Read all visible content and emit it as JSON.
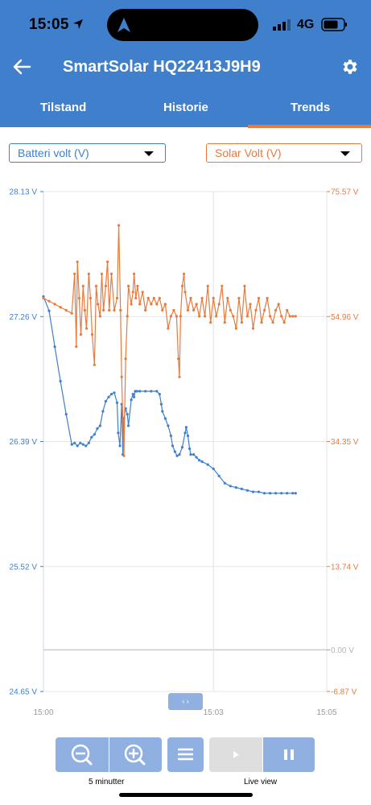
{
  "status": {
    "time": "15:05",
    "network": "4G"
  },
  "header": {
    "title": "SmartSolar HQ22413J9H9",
    "tabs": [
      {
        "label": "Tilstand"
      },
      {
        "label": "Historie"
      },
      {
        "label": "Trends",
        "active": true
      }
    ]
  },
  "selectors": {
    "left": {
      "value": "Batteri volt (V)",
      "color": "#3f7fcc"
    },
    "right": {
      "value": "Solar Volt (V)",
      "color": "#ea7a3c"
    }
  },
  "chart_data": {
    "type": "line",
    "x_ticks": [
      "15:00",
      "15:03",
      "15:05"
    ],
    "y_left": {
      "ticks": [
        "28.13 V",
        "27.26 V",
        "26.39 V",
        "25.52 V",
        "24.65 V"
      ],
      "range": [
        24.65,
        28.13
      ],
      "unit": "V"
    },
    "y_right": {
      "ticks": [
        "75.57 V",
        "54.96 V",
        "34.35 V",
        "13.74 V",
        "0.00 V",
        "-6.87 V"
      ],
      "range": [
        -6.87,
        75.57
      ],
      "unit": "V"
    },
    "grid": true,
    "series": [
      {
        "name": "Batteri volt (V)",
        "color": "#3f7fcc",
        "axis": "left",
        "points": [
          [
            0.0,
            27.4
          ],
          [
            0.1,
            27.3
          ],
          [
            0.2,
            27.05
          ],
          [
            0.3,
            26.81
          ],
          [
            0.4,
            26.58
          ],
          [
            0.5,
            26.37
          ],
          [
            0.55,
            26.38
          ],
          [
            0.6,
            26.36
          ],
          [
            0.65,
            26.38
          ],
          [
            0.7,
            26.37
          ],
          [
            0.75,
            26.36
          ],
          [
            0.8,
            26.38
          ],
          [
            0.85,
            26.42
          ],
          [
            0.9,
            26.44
          ],
          [
            0.95,
            26.48
          ],
          [
            1.0,
            26.5
          ],
          [
            1.05,
            26.6
          ],
          [
            1.1,
            26.67
          ],
          [
            1.15,
            26.7
          ],
          [
            1.2,
            26.72
          ],
          [
            1.25,
            26.73
          ],
          [
            1.3,
            26.66
          ],
          [
            1.32,
            26.45
          ],
          [
            1.35,
            26.36
          ],
          [
            1.38,
            26.65
          ],
          [
            1.4,
            26.3
          ],
          [
            1.42,
            26.55
          ],
          [
            1.45,
            26.62
          ],
          [
            1.48,
            26.58
          ],
          [
            1.5,
            26.5
          ],
          [
            1.55,
            26.68
          ],
          [
            1.58,
            26.72
          ],
          [
            1.6,
            26.7
          ],
          [
            1.62,
            26.74
          ],
          [
            1.65,
            26.74
          ],
          [
            1.7,
            26.74
          ],
          [
            1.8,
            26.74
          ],
          [
            1.9,
            26.74
          ],
          [
            2.0,
            26.74
          ],
          [
            2.05,
            26.72
          ],
          [
            2.08,
            26.65
          ],
          [
            2.1,
            26.6
          ],
          [
            2.15,
            26.55
          ],
          [
            2.2,
            26.5
          ],
          [
            2.25,
            26.43
          ],
          [
            2.28,
            26.36
          ],
          [
            2.32,
            26.32
          ],
          [
            2.36,
            26.29
          ],
          [
            2.4,
            26.3
          ],
          [
            2.45,
            26.35
          ],
          [
            2.5,
            26.45
          ],
          [
            2.52,
            26.49
          ],
          [
            2.55,
            26.43
          ],
          [
            2.58,
            26.34
          ],
          [
            2.6,
            26.3
          ],
          [
            2.65,
            26.3
          ],
          [
            2.7,
            26.28
          ],
          [
            2.75,
            26.26
          ],
          [
            2.8,
            26.25
          ],
          [
            2.9,
            26.23
          ],
          [
            3.0,
            26.2
          ],
          [
            3.1,
            26.15
          ],
          [
            3.2,
            26.1
          ],
          [
            3.3,
            26.08
          ],
          [
            3.4,
            26.07
          ],
          [
            3.5,
            26.06
          ],
          [
            3.6,
            26.05
          ],
          [
            3.7,
            26.04
          ],
          [
            3.8,
            26.04
          ],
          [
            3.9,
            26.03
          ],
          [
            4.0,
            26.03
          ],
          [
            4.1,
            26.03
          ],
          [
            4.2,
            26.03
          ],
          [
            4.3,
            26.03
          ],
          [
            4.4,
            26.03
          ],
          [
            4.45,
            26.03
          ]
        ]
      },
      {
        "name": "Solar Volt (V)",
        "color": "#ea7a3c",
        "axis": "right",
        "points": [
          [
            0.0,
            58.0
          ],
          [
            0.1,
            57.5
          ],
          [
            0.2,
            57.0
          ],
          [
            0.3,
            56.5
          ],
          [
            0.4,
            56.0
          ],
          [
            0.5,
            55.5
          ],
          [
            0.55,
            62.0
          ],
          [
            0.58,
            50.0
          ],
          [
            0.6,
            64.0
          ],
          [
            0.63,
            58.0
          ],
          [
            0.66,
            52.0
          ],
          [
            0.7,
            60.0
          ],
          [
            0.73,
            56.0
          ],
          [
            0.76,
            53.0
          ],
          [
            0.8,
            62.0
          ],
          [
            0.83,
            58.0
          ],
          [
            0.86,
            52.0
          ],
          [
            0.9,
            47.0
          ],
          [
            0.93,
            60.0
          ],
          [
            0.96,
            57.0
          ],
          [
            1.0,
            55.0
          ],
          [
            1.03,
            62.0
          ],
          [
            1.06,
            56.0
          ],
          [
            1.1,
            60.0
          ],
          [
            1.13,
            64.0
          ],
          [
            1.16,
            56.0
          ],
          [
            1.2,
            62.0
          ],
          [
            1.25,
            56.0
          ],
          [
            1.3,
            58.0
          ],
          [
            1.33,
            70.0
          ],
          [
            1.36,
            56.0
          ],
          [
            1.38,
            45.0
          ],
          [
            1.4,
            38.0
          ],
          [
            1.42,
            32.0
          ],
          [
            1.45,
            48.0
          ],
          [
            1.48,
            55.0
          ],
          [
            1.5,
            60.0
          ],
          [
            1.55,
            57.0
          ],
          [
            1.58,
            59.0
          ],
          [
            1.6,
            62.0
          ],
          [
            1.63,
            58.0
          ],
          [
            1.66,
            60.0
          ],
          [
            1.7,
            57.0
          ],
          [
            1.75,
            59.0
          ],
          [
            1.8,
            56.0
          ],
          [
            1.85,
            58.0
          ],
          [
            1.9,
            57.0
          ],
          [
            1.95,
            58.0
          ],
          [
            2.0,
            57.0
          ],
          [
            2.05,
            58.0
          ],
          [
            2.1,
            56.0
          ],
          [
            2.15,
            57.0
          ],
          [
            2.2,
            53.0
          ],
          [
            2.25,
            55.0
          ],
          [
            2.3,
            56.0
          ],
          [
            2.35,
            55.0
          ],
          [
            2.38,
            48.0
          ],
          [
            2.4,
            45.0
          ],
          [
            2.42,
            55.0
          ],
          [
            2.45,
            60.0
          ],
          [
            2.48,
            62.0
          ],
          [
            2.5,
            59.0
          ],
          [
            2.55,
            56.0
          ],
          [
            2.6,
            58.0
          ],
          [
            2.65,
            56.0
          ],
          [
            2.7,
            57.0
          ],
          [
            2.75,
            55.0
          ],
          [
            2.8,
            58.0
          ],
          [
            2.85,
            55.0
          ],
          [
            2.9,
            60.0
          ],
          [
            2.95,
            54.0
          ],
          [
            3.0,
            58.0
          ],
          [
            3.05,
            55.0
          ],
          [
            3.1,
            57.0
          ],
          [
            3.15,
            60.0
          ],
          [
            3.2,
            54.0
          ],
          [
            3.25,
            58.0
          ],
          [
            3.3,
            56.0
          ],
          [
            3.35,
            55.0
          ],
          [
            3.4,
            53.0
          ],
          [
            3.45,
            58.0
          ],
          [
            3.5,
            54.0
          ],
          [
            3.55,
            60.0
          ],
          [
            3.6,
            55.0
          ],
          [
            3.65,
            57.0
          ],
          [
            3.7,
            53.0
          ],
          [
            3.75,
            56.0
          ],
          [
            3.8,
            58.0
          ],
          [
            3.85,
            54.0
          ],
          [
            3.9,
            56.0
          ],
          [
            3.95,
            58.0
          ],
          [
            4.0,
            55.0
          ],
          [
            4.05,
            54.0
          ],
          [
            4.1,
            56.0
          ],
          [
            4.15,
            57.0
          ],
          [
            4.2,
            55.0
          ],
          [
            4.25,
            54.0
          ],
          [
            4.3,
            56.0
          ],
          [
            4.35,
            55.0
          ],
          [
            4.4,
            55.0
          ],
          [
            4.45,
            55.0
          ]
        ]
      }
    ],
    "x_range": [
      0,
      5
    ]
  },
  "controls": {
    "zoom_caption": "5 minutter",
    "live_caption": "Live view",
    "handle_symbol": "‹ ›"
  }
}
